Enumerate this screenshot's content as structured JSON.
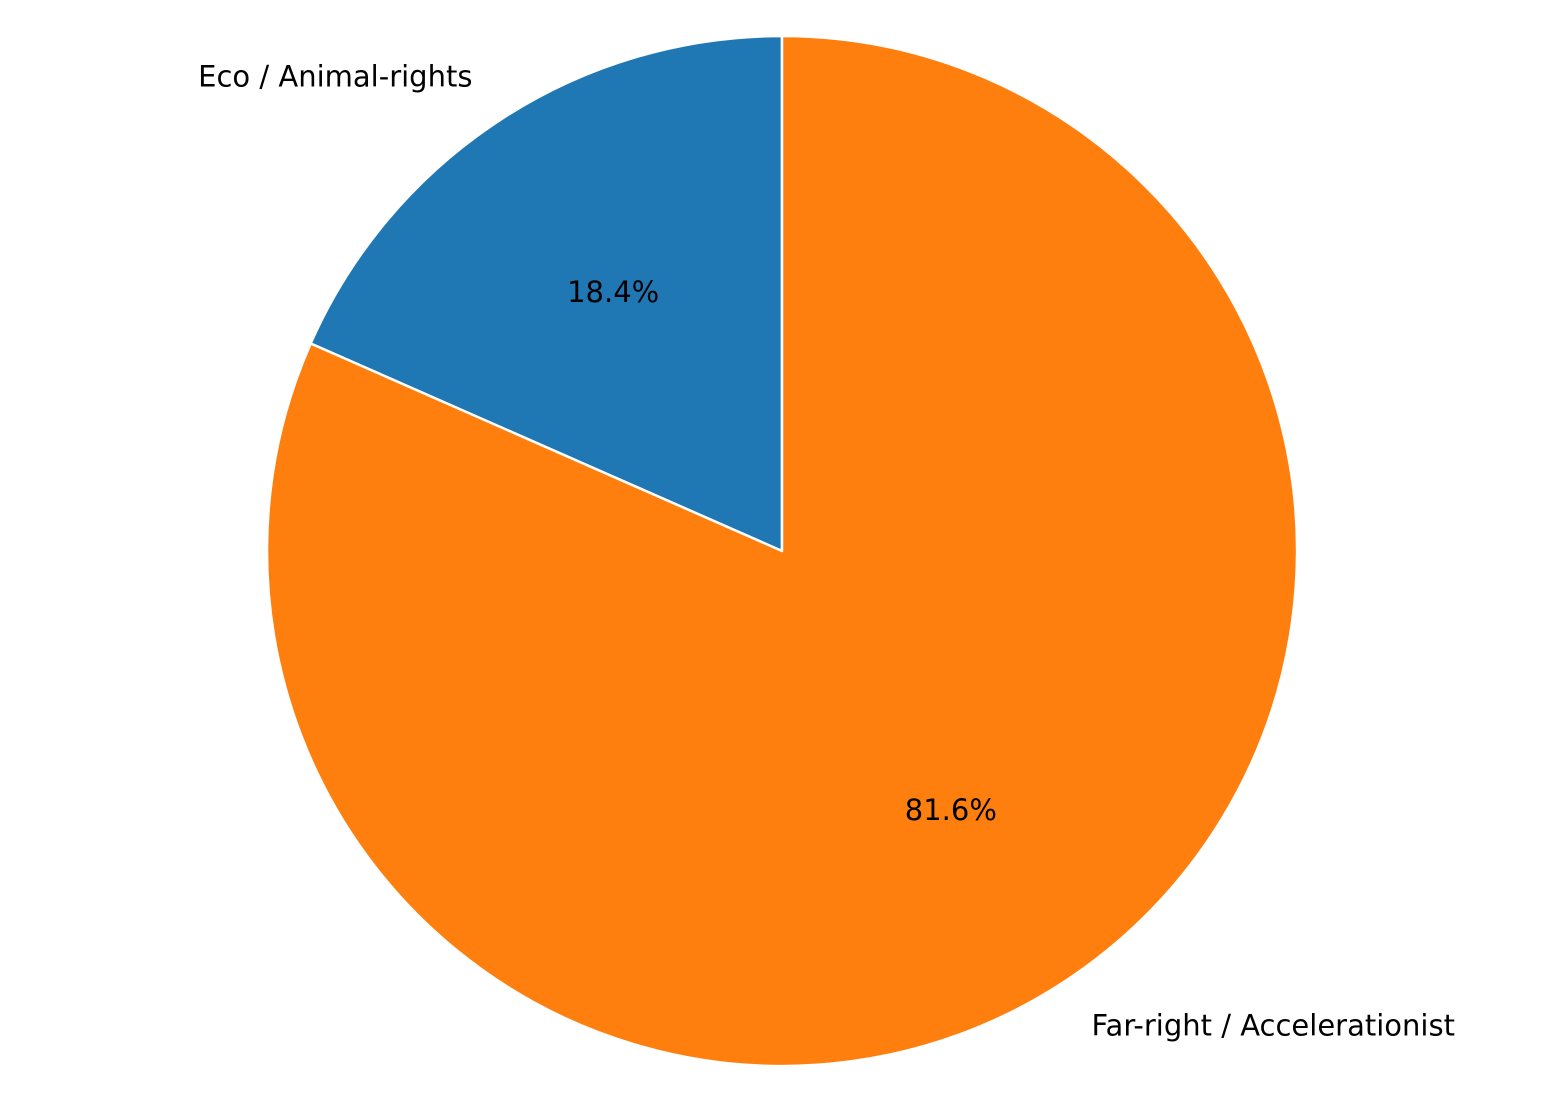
{
  "chart_data": {
    "type": "pie",
    "title": "",
    "slices": [
      {
        "label": "Eco / Animal-rights",
        "value": 18.4,
        "pct_label": "18.4%",
        "color": "#1f77b4"
      },
      {
        "label": "Far-right / Accelerationist",
        "value": 81.6,
        "pct_label": "81.6%",
        "color": "#ff7f0e"
      }
    ],
    "start_angle_deg": 90,
    "direction": "counterclockwise",
    "legend": "none"
  }
}
